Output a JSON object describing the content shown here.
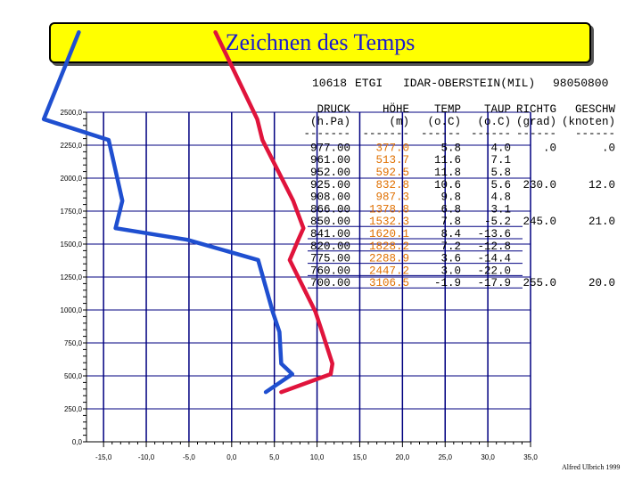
{
  "title": "Zeichnen des Temps",
  "station": {
    "id": "10618",
    "code": "ETGI",
    "name": "IDAR-OBERSTEIN(MIL)",
    "datetime": "98050800"
  },
  "table": {
    "headers": [
      "DRUCK",
      "HÖHE",
      "TEMP",
      "TAUP",
      "RICHTG",
      "GESCHW"
    ],
    "units": [
      "(h.Pa)",
      "(m)",
      "(o.C)",
      "(o.C)",
      "(grad)",
      "(knoten)"
    ],
    "separators": [
      "-------",
      "-------",
      "------",
      "------",
      "------",
      "------"
    ],
    "rows": [
      {
        "druck": "977.00",
        "hoehe": "377.0",
        "temp": "5.8",
        "taup": "4.0",
        "richtg": ".0",
        "geschw": ".0"
      },
      {
        "druck": "961.00",
        "hoehe": "513.7",
        "temp": "11.6",
        "taup": "7.1",
        "richtg": "",
        "geschw": ""
      },
      {
        "druck": "952.00",
        "hoehe": "592.5",
        "temp": "11.8",
        "taup": "5.8",
        "richtg": "",
        "geschw": ""
      },
      {
        "druck": "925.00",
        "hoehe": "832.8",
        "temp": "10.6",
        "taup": "5.6",
        "richtg": "230.0",
        "geschw": "12.0"
      },
      {
        "druck": "908.00",
        "hoehe": "987.3",
        "temp": "9.8",
        "taup": "4.8",
        "richtg": "",
        "geschw": ""
      },
      {
        "druck": "866.00",
        "hoehe": "1378.8",
        "temp": "6.8",
        "taup": "3.1",
        "richtg": "",
        "geschw": ""
      },
      {
        "druck": "850.00",
        "hoehe": "1532.3",
        "temp": "7.8",
        "taup": "-5.2",
        "richtg": "245.0",
        "geschw": "21.0"
      },
      {
        "druck": "841.00",
        "hoehe": "1620.1",
        "temp": "8.4",
        "taup": "-13.6",
        "richtg": "",
        "geschw": ""
      },
      {
        "druck": "820.00",
        "hoehe": "1828.2",
        "temp": "7.2",
        "taup": "-12.8",
        "richtg": "",
        "geschw": ""
      },
      {
        "druck": "775.00",
        "hoehe": "2288.9",
        "temp": "3.6",
        "taup": "-14.4",
        "richtg": "",
        "geschw": ""
      },
      {
        "druck": "760.00",
        "hoehe": "2447.2",
        "temp": "3.0",
        "taup": "-22.0",
        "richtg": "",
        "geschw": ""
      },
      {
        "druck": "700.00",
        "hoehe": "3106.5",
        "temp": "-1.9",
        "taup": "-17.9",
        "richtg": "255.0",
        "geschw": "20.0"
      }
    ]
  },
  "credit": "Alfred Ulbrich 1999",
  "colors": {
    "temp": "#e0143c",
    "dewpoint": "#1f4fd0",
    "grid": "#000080",
    "title_bg": "#ffff00",
    "title_text": "#1a1ad0",
    "highlight": "#e07000"
  },
  "chart_data": {
    "type": "line",
    "xlim": [
      -17,
      35
    ],
    "ylim": [
      0,
      2500
    ],
    "x_ticks": [
      "-15,0",
      "-10,0",
      "-5,0",
      "0,0",
      "5,0",
      "10,0",
      "15,0",
      "20,0",
      "25,0",
      "30,0",
      "35,0"
    ],
    "x_tick_values": [
      -15,
      -10,
      -5,
      0,
      5,
      10,
      15,
      20,
      25,
      30,
      35
    ],
    "y_ticks": [
      "0,0",
      "250,0",
      "500,0",
      "750,0",
      "1000,0",
      "1250,0",
      "1500,0",
      "1750,0",
      "2000,0",
      "2250,0",
      "2500,0"
    ],
    "y_tick_values": [
      0,
      250,
      500,
      750,
      1000,
      1250,
      1500,
      1750,
      2000,
      2250,
      2500
    ],
    "grid": true,
    "series": [
      {
        "key": "temp",
        "points": [
          [
            -1.9,
            3106.5
          ],
          [
            3.0,
            2447.2
          ],
          [
            3.6,
            2288.9
          ],
          [
            7.2,
            1828.2
          ],
          [
            8.4,
            1620.1
          ],
          [
            7.8,
            1532.3
          ],
          [
            6.8,
            1378.8
          ],
          [
            9.8,
            987.3
          ],
          [
            10.6,
            832.8
          ],
          [
            11.8,
            592.5
          ],
          [
            11.6,
            513.7
          ],
          [
            5.8,
            377.0
          ]
        ]
      },
      {
        "key": "dewpoint",
        "points": [
          [
            -17.9,
            3106.5
          ],
          [
            -22.0,
            2447.2
          ],
          [
            -14.4,
            2288.9
          ],
          [
            -12.8,
            1828.2
          ],
          [
            -13.6,
            1620.1
          ],
          [
            -5.2,
            1532.3
          ],
          [
            3.1,
            1378.8
          ],
          [
            4.8,
            987.3
          ],
          [
            5.6,
            832.8
          ],
          [
            5.8,
            592.5
          ],
          [
            7.1,
            513.7
          ],
          [
            4.0,
            377.0
          ]
        ]
      }
    ]
  }
}
